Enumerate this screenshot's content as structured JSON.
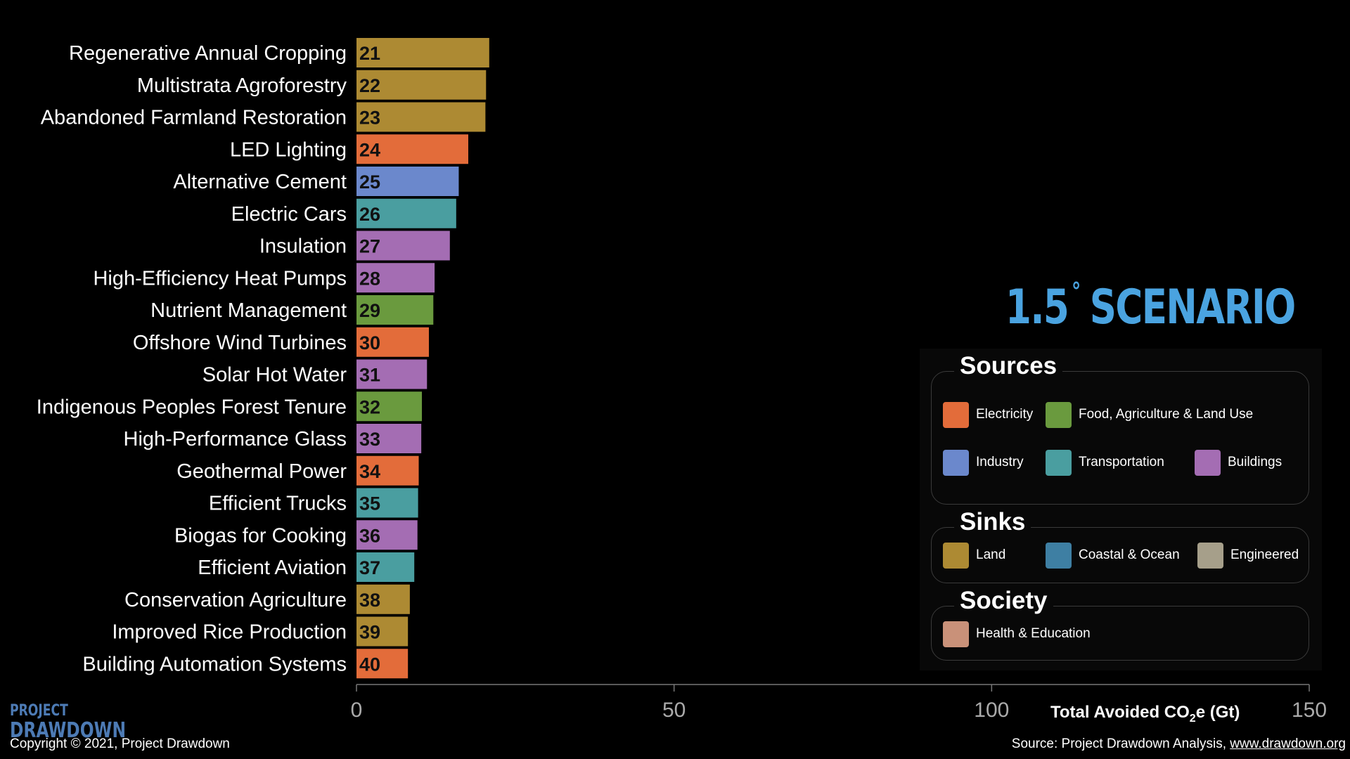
{
  "chart_data": {
    "type": "bar",
    "orientation": "horizontal",
    "categories": [
      "Regenerative Annual Cropping",
      "Multistrata Agroforestry",
      "Abandoned Farmland Restoration",
      "LED Lighting",
      "Alternative Cement",
      "Electric Cars",
      "Insulation",
      "High-Efficiency Heat Pumps",
      "Nutrient Management",
      "Offshore Wind Turbines",
      "Solar Hot Water",
      "Indigenous Peoples Forest Tenure",
      "High-Performance Glass",
      "Geothermal Power",
      "Efficient Trucks",
      "Biogas for Cooking",
      "Efficient Aviation",
      "Conservation Agriculture",
      "Improved Rice Production",
      "Building Automation Systems"
    ],
    "ranks": [
      "21",
      "22",
      "23",
      "24",
      "25",
      "26",
      "27",
      "28",
      "29",
      "30",
      "31",
      "32",
      "33",
      "34",
      "35",
      "36",
      "37",
      "38",
      "39",
      "40"
    ],
    "values": [
      20.9,
      20.4,
      20.3,
      17.6,
      16.1,
      15.7,
      14.7,
      12.3,
      12.1,
      11.4,
      11.1,
      10.3,
      10.2,
      9.8,
      9.7,
      9.6,
      9.1,
      8.4,
      8.1,
      8.1
    ],
    "groups": [
      "land",
      "land",
      "land",
      "electricity",
      "industry",
      "transportation",
      "buildings",
      "buildings",
      "food",
      "electricity",
      "buildings",
      "food",
      "buildings",
      "electricity",
      "transportation",
      "buildings",
      "transportation",
      "land",
      "land",
      "electricity"
    ],
    "xlim": [
      0,
      150
    ],
    "xticks": [
      "0",
      "50",
      "100",
      "150"
    ],
    "xtick_values": [
      0,
      50,
      100,
      150
    ],
    "xlabel_main": "Total Avoided CO",
    "xlabel_sub": "2",
    "xlabel_end": "e (Gt)",
    "grid": false
  },
  "colors": {
    "electricity": "#e36c3a",
    "food": "#6a9a3e",
    "industry": "#6b88cc",
    "transportation": "#4a9ea0",
    "buildings": "#a46db3",
    "land": "#ad8a33",
    "coastal": "#3e7fa3",
    "engineered": "#a69f8a",
    "health": "#c99179",
    "title": "#4aa3e0",
    "logo": "#4d7bb5"
  },
  "scenario": {
    "title_number": "1.5",
    "title_degree": "°",
    "title_word": "SCENARIO"
  },
  "legend": {
    "sources_heading": "Sources",
    "sinks_heading": "Sinks",
    "society_heading": "Society",
    "electricity": "Electricity",
    "food": "Food, Agriculture & Land Use",
    "industry": "Industry",
    "transportation": "Transportation",
    "buildings": "Buildings",
    "land": "Land",
    "coastal": "Coastal & Ocean",
    "engineered": "Engineered",
    "health": "Health & Education"
  },
  "footer": {
    "logo_line1": "PROJECT",
    "logo_line2": "DRAWDOWN",
    "copyright": "Copyright © 2021, Project Drawdown",
    "source_prefix": "Source: Project Drawdown Analysis, ",
    "source_url": "www.drawdown.org"
  }
}
